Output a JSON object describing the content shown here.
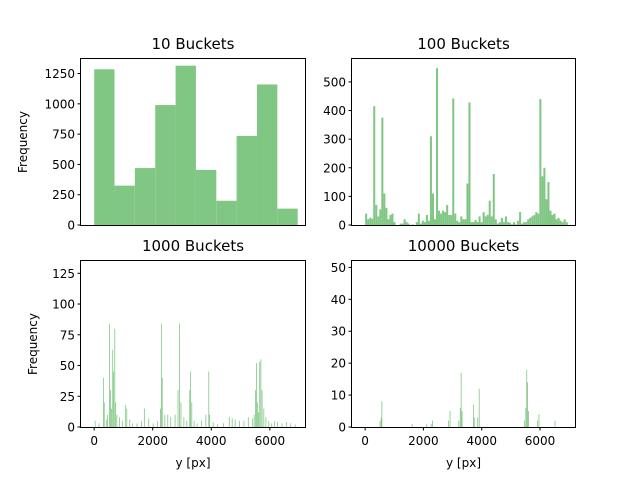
{
  "figure": {
    "background": "#ffffff",
    "bar_color": "#81c784"
  },
  "chart_data": [
    {
      "type": "bar",
      "title": "10 Buckets",
      "xlabel": "",
      "ylabel": "Frequency",
      "xlim": [
        -450,
        7200
      ],
      "ylim": [
        0,
        1370
      ],
      "xticks": [],
      "yticks": [
        0,
        250,
        500,
        750,
        1000,
        1250
      ],
      "ytick_labels": [
        "0",
        "250",
        "500",
        "750",
        "1000",
        "1250"
      ],
      "bins": [
        {
          "x0": 0,
          "x1": 695,
          "v": 1285
        },
        {
          "x0": 695,
          "x1": 1390,
          "v": 325
        },
        {
          "x0": 1390,
          "x1": 2085,
          "v": 470
        },
        {
          "x0": 2085,
          "x1": 2780,
          "v": 990
        },
        {
          "x0": 2780,
          "x1": 3475,
          "v": 1315
        },
        {
          "x0": 3475,
          "x1": 4170,
          "v": 455
        },
        {
          "x0": 4170,
          "x1": 4865,
          "v": 200
        },
        {
          "x0": 4865,
          "x1": 5560,
          "v": 735
        },
        {
          "x0": 5560,
          "x1": 6255,
          "v": 1160
        },
        {
          "x0": 6255,
          "x1": 6950,
          "v": 135
        }
      ]
    },
    {
      "type": "bar",
      "title": "100 Buckets",
      "xlabel": "",
      "ylabel": "",
      "xlim": [
        -450,
        7200
      ],
      "ylim": [
        0,
        580
      ],
      "xticks": [],
      "yticks": [
        0,
        100,
        200,
        300,
        400,
        500
      ],
      "ytick_labels": [
        "0",
        "100",
        "200",
        "300",
        "400",
        "500"
      ],
      "bin_start": 0,
      "bin_width": 69.5,
      "values": [
        40,
        20,
        25,
        22,
        415,
        70,
        30,
        55,
        375,
        110,
        60,
        20,
        35,
        40,
        10,
        0,
        0,
        5,
        5,
        20,
        10,
        5,
        0,
        2,
        0,
        10,
        40,
        5,
        15,
        10,
        35,
        15,
        310,
        110,
        20,
        548,
        50,
        40,
        50,
        45,
        70,
        35,
        35,
        442,
        40,
        15,
        10,
        30,
        20,
        20,
        145,
        428,
        10,
        10,
        18,
        10,
        30,
        10,
        45,
        30,
        35,
        85,
        30,
        178,
        20,
        5,
        10,
        25,
        10,
        30,
        10,
        8,
        2,
        10,
        2,
        15,
        45,
        5,
        10,
        10,
        20,
        25,
        30,
        35,
        45,
        40,
        440,
        170,
        200,
        90,
        150,
        50,
        35,
        40,
        20,
        25,
        15,
        10,
        20,
        10
      ]
    },
    {
      "type": "bar",
      "title": "1000 Buckets",
      "xlabel": "y [px]",
      "ylabel": "Frequency",
      "xlim": [
        -450,
        7200
      ],
      "ylim": [
        0,
        135
      ],
      "xticks": [
        0,
        2000,
        4000,
        6000
      ],
      "xtick_labels": [
        "0",
        "2000",
        "4000",
        "6000"
      ],
      "yticks": [
        0,
        25,
        50,
        75,
        100,
        125
      ],
      "ytick_labels": [
        "0",
        "25",
        "50",
        "75",
        "100",
        "125"
      ],
      "bin_width": 7,
      "spikes": [
        {
          "x": 20,
          "v": 5
        },
        {
          "x": 150,
          "v": 3
        },
        {
          "x": 300,
          "v": 40
        },
        {
          "x": 330,
          "v": 20
        },
        {
          "x": 400,
          "v": 6
        },
        {
          "x": 440,
          "v": 10
        },
        {
          "x": 510,
          "v": 84
        },
        {
          "x": 540,
          "v": 30
        },
        {
          "x": 580,
          "v": 15
        },
        {
          "x": 620,
          "v": 63
        },
        {
          "x": 650,
          "v": 45
        },
        {
          "x": 690,
          "v": 80
        },
        {
          "x": 720,
          "v": 20
        },
        {
          "x": 760,
          "v": 10
        },
        {
          "x": 850,
          "v": 8
        },
        {
          "x": 950,
          "v": 5
        },
        {
          "x": 1050,
          "v": 18
        },
        {
          "x": 1100,
          "v": 15
        },
        {
          "x": 1200,
          "v": 6
        },
        {
          "x": 1300,
          "v": 3
        },
        {
          "x": 1450,
          "v": 3
        },
        {
          "x": 1600,
          "v": 5
        },
        {
          "x": 1700,
          "v": 15
        },
        {
          "x": 1850,
          "v": 7
        },
        {
          "x": 2000,
          "v": 3
        },
        {
          "x": 2150,
          "v": 5
        },
        {
          "x": 2250,
          "v": 15
        },
        {
          "x": 2280,
          "v": 84
        },
        {
          "x": 2310,
          "v": 40
        },
        {
          "x": 2400,
          "v": 10
        },
        {
          "x": 2500,
          "v": 10
        },
        {
          "x": 2600,
          "v": 8
        },
        {
          "x": 2750,
          "v": 10
        },
        {
          "x": 2850,
          "v": 30
        },
        {
          "x": 2900,
          "v": 84
        },
        {
          "x": 2950,
          "v": 20
        },
        {
          "x": 3050,
          "v": 8
        },
        {
          "x": 3150,
          "v": 5
        },
        {
          "x": 3250,
          "v": 30
        },
        {
          "x": 3280,
          "v": 45
        },
        {
          "x": 3320,
          "v": 20
        },
        {
          "x": 3400,
          "v": 5
        },
        {
          "x": 3500,
          "v": 3
        },
        {
          "x": 3650,
          "v": 5
        },
        {
          "x": 3800,
          "v": 10
        },
        {
          "x": 3900,
          "v": 45
        },
        {
          "x": 3930,
          "v": 10
        },
        {
          "x": 4050,
          "v": 4
        },
        {
          "x": 4200,
          "v": 2
        },
        {
          "x": 4400,
          "v": 3
        },
        {
          "x": 4600,
          "v": 8
        },
        {
          "x": 4700,
          "v": 7
        },
        {
          "x": 4800,
          "v": 6
        },
        {
          "x": 4950,
          "v": 5
        },
        {
          "x": 5100,
          "v": 5
        },
        {
          "x": 5250,
          "v": 8
        },
        {
          "x": 5400,
          "v": 7
        },
        {
          "x": 5450,
          "v": 10
        },
        {
          "x": 5500,
          "v": 30
        },
        {
          "x": 5530,
          "v": 52
        },
        {
          "x": 5560,
          "v": 20
        },
        {
          "x": 5600,
          "v": 12
        },
        {
          "x": 5640,
          "v": 53
        },
        {
          "x": 5680,
          "v": 55
        },
        {
          "x": 5720,
          "v": 30
        },
        {
          "x": 5780,
          "v": 15
        },
        {
          "x": 5850,
          "v": 8
        },
        {
          "x": 5950,
          "v": 5
        },
        {
          "x": 6050,
          "v": 3
        },
        {
          "x": 6150,
          "v": 5
        },
        {
          "x": 6250,
          "v": 4
        },
        {
          "x": 6400,
          "v": 3
        },
        {
          "x": 6550,
          "v": 4
        },
        {
          "x": 6700,
          "v": 3
        },
        {
          "x": 6850,
          "v": 2
        }
      ]
    },
    {
      "type": "bar",
      "title": "10000 Buckets",
      "xlabel": "y [px]",
      "ylabel": "",
      "xlim": [
        -450,
        7200
      ],
      "ylim": [
        0,
        52
      ],
      "xticks": [
        0,
        2000,
        4000,
        6000
      ],
      "xtick_labels": [
        "0",
        "2000",
        "4000",
        "6000"
      ],
      "yticks": [
        0,
        10,
        20,
        30,
        40,
        50
      ],
      "ytick_labels": [
        "0",
        "10",
        "20",
        "30",
        "40",
        "50"
      ],
      "bin_width": 1,
      "spikes": [
        {
          "x": 500,
          "v": 2
        },
        {
          "x": 540,
          "v": 3
        },
        {
          "x": 560,
          "v": 8
        },
        {
          "x": 1600,
          "v": 1
        },
        {
          "x": 2100,
          "v": 1
        },
        {
          "x": 2250,
          "v": 1
        },
        {
          "x": 2300,
          "v": 2
        },
        {
          "x": 2850,
          "v": 2
        },
        {
          "x": 2900,
          "v": 5
        },
        {
          "x": 3200,
          "v": 2
        },
        {
          "x": 3250,
          "v": 6
        },
        {
          "x": 3280,
          "v": 17
        },
        {
          "x": 3310,
          "v": 5
        },
        {
          "x": 3700,
          "v": 7
        },
        {
          "x": 3730,
          "v": 3
        },
        {
          "x": 3850,
          "v": 3
        },
        {
          "x": 3900,
          "v": 12
        },
        {
          "x": 5450,
          "v": 2
        },
        {
          "x": 5500,
          "v": 6
        },
        {
          "x": 5530,
          "v": 18
        },
        {
          "x": 5560,
          "v": 14
        },
        {
          "x": 5590,
          "v": 5
        },
        {
          "x": 5900,
          "v": 2
        },
        {
          "x": 5950,
          "v": 4
        },
        {
          "x": 6500,
          "v": 2
        }
      ]
    }
  ]
}
